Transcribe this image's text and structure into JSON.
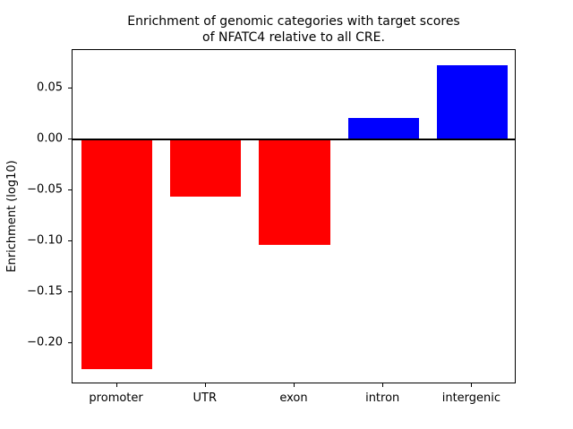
{
  "chart_data": {
    "type": "bar",
    "title": "Enrichment of genomic categories with target scores\nof NFATC4 relative to all CRE.",
    "title_lines": [
      "Enrichment of genomic categories with target scores",
      "of NFATC4 relative to all CRE."
    ],
    "xlabel": "",
    "ylabel": "Enrichment (log10)",
    "categories": [
      "promoter",
      "UTR",
      "exon",
      "intron",
      "intergenic"
    ],
    "values": [
      -0.225,
      -0.056,
      -0.103,
      0.021,
      0.073
    ],
    "bar_colors": [
      "#ff0000",
      "#ff0000",
      "#ff0000",
      "#0000ff",
      "#0000ff"
    ],
    "negative_color": "#ff0000",
    "positive_color": "#0000ff",
    "ylim": [
      -0.24,
      0.088
    ],
    "yticks": [
      0.05,
      0.0,
      -0.05,
      -0.1,
      -0.15,
      -0.2
    ],
    "ytick_labels": [
      "0.05",
      "0.00",
      "−0.05",
      "−0.10",
      "−0.15",
      "−0.20"
    ],
    "bar_width_fraction": 0.8,
    "zero_line": true,
    "grid": false,
    "legend": false
  }
}
